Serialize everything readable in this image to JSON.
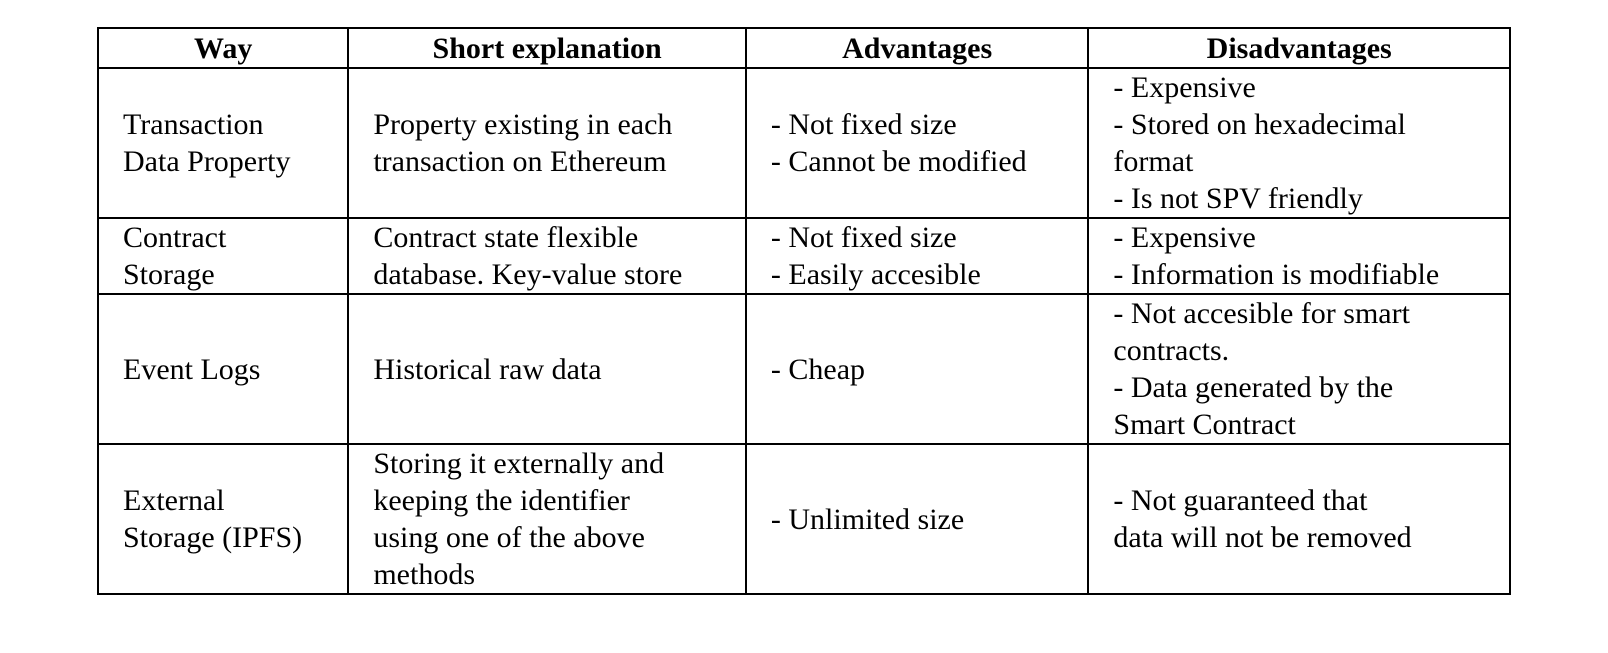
{
  "table": {
    "headers": {
      "way": "Way",
      "short": "Short explanation",
      "advantages": "Advantages",
      "disadvantages": "Disadvantages"
    },
    "rows": [
      {
        "way": [
          "Transaction",
          "Data Property"
        ],
        "short": [
          "Property existing in each",
          "transaction on Ethereum"
        ],
        "advantages": [
          "- Not fixed size",
          "- Cannot be modified"
        ],
        "disadvantages": [
          "- Expensive",
          "- Stored on hexadecimal",
          "format",
          "- Is not SPV friendly"
        ]
      },
      {
        "way": [
          "Contract",
          "Storage"
        ],
        "short": [
          "Contract state flexible",
          "database. Key-value store"
        ],
        "advantages": [
          "- Not fixed size",
          "- Easily accesible"
        ],
        "disadvantages": [
          "- Expensive",
          "- Information is modifiable"
        ]
      },
      {
        "way": [
          "Event Logs"
        ],
        "short": [
          "Historical raw data"
        ],
        "advantages": [
          "- Cheap"
        ],
        "disadvantages": [
          "- Not accesible for smart",
          "contracts.",
          "- Data generated by the",
          "Smart Contract"
        ]
      },
      {
        "way": [
          "External",
          "Storage (IPFS)"
        ],
        "short": [
          "Storing it externally and",
          "keeping the identifier",
          "using one of the above",
          "methods"
        ],
        "advantages": [
          "- Unlimited size"
        ],
        "disadvantages": [
          "- Not guaranteed that",
          "data will not be removed"
        ]
      }
    ]
  }
}
